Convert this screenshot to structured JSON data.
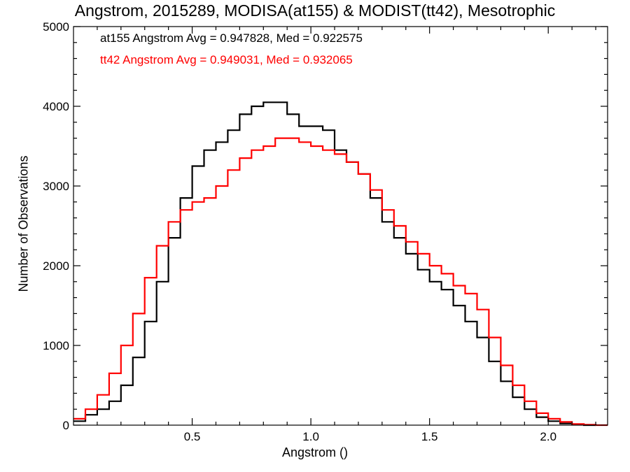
{
  "chart_data": {
    "type": "line",
    "title": "Angstrom, 2015289, MODISA(at155) & MODIST(tt42), Mesotrophic",
    "xlabel": "Angstrom ()",
    "ylabel": "Number of Observations",
    "xlim": [
      0.0,
      2.25
    ],
    "ylim": [
      0,
      5000
    ],
    "x_ticks": [
      0.5,
      1.0,
      1.5,
      2.0
    ],
    "x_tick_labels": [
      "0.5",
      "1.0",
      "1.5",
      "2.0"
    ],
    "y_ticks": [
      0,
      1000,
      2000,
      3000,
      4000,
      5000
    ],
    "y_tick_labels": [
      "0",
      "1000",
      "2000",
      "3000",
      "4000",
      "5000"
    ],
    "grid": false,
    "step": true,
    "annotations": [
      "at155 Angstrom Avg = 0.947828, Med = 0.922575",
      "tt42 Angstrom Avg = 0.949031, Med = 0.932065"
    ],
    "series": [
      {
        "color": "#000000",
        "x": [
          0.0,
          0.05,
          0.1,
          0.15,
          0.2,
          0.25,
          0.3,
          0.35,
          0.4,
          0.45,
          0.5,
          0.55,
          0.6,
          0.65,
          0.7,
          0.75,
          0.8,
          0.85,
          0.9,
          0.95,
          1.0,
          1.05,
          1.1,
          1.15,
          1.2,
          1.25,
          1.3,
          1.35,
          1.4,
          1.45,
          1.5,
          1.55,
          1.6,
          1.65,
          1.7,
          1.75,
          1.8,
          1.85,
          1.9,
          1.95,
          2.0,
          2.05,
          2.1,
          2.15
        ],
        "y": [
          50,
          130,
          200,
          300,
          500,
          850,
          1300,
          1800,
          2350,
          2850,
          3250,
          3450,
          3550,
          3700,
          3900,
          4000,
          4050,
          4050,
          3900,
          3750,
          3750,
          3700,
          3450,
          3300,
          3150,
          2850,
          2550,
          2350,
          2150,
          1950,
          1800,
          1700,
          1500,
          1300,
          1100,
          800,
          550,
          350,
          200,
          100,
          50,
          20,
          5,
          0
        ]
      },
      {
        "color": "#ff0000",
        "x": [
          0.0,
          0.05,
          0.1,
          0.15,
          0.2,
          0.25,
          0.3,
          0.35,
          0.4,
          0.45,
          0.5,
          0.55,
          0.6,
          0.65,
          0.7,
          0.75,
          0.8,
          0.85,
          0.9,
          0.95,
          1.0,
          1.05,
          1.1,
          1.15,
          1.2,
          1.25,
          1.3,
          1.35,
          1.4,
          1.45,
          1.5,
          1.55,
          1.6,
          1.65,
          1.7,
          1.75,
          1.8,
          1.85,
          1.9,
          1.95,
          2.0,
          2.05,
          2.1,
          2.15,
          2.2
        ],
        "y": [
          80,
          200,
          380,
          650,
          1000,
          1400,
          1850,
          2250,
          2550,
          2700,
          2800,
          2850,
          3000,
          3200,
          3350,
          3450,
          3500,
          3600,
          3600,
          3550,
          3500,
          3450,
          3400,
          3300,
          3150,
          2950,
          2700,
          2500,
          2300,
          2150,
          2000,
          1900,
          1750,
          1650,
          1450,
          1100,
          750,
          500,
          300,
          150,
          80,
          40,
          15,
          5,
          0
        ]
      }
    ]
  }
}
